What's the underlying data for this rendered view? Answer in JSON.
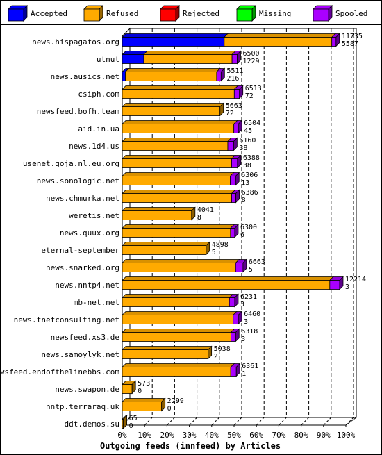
{
  "chart_data": {
    "type": "bar",
    "orientation": "horizontal",
    "stacked": true,
    "title": "",
    "xlabel": "Outgoing feeds (innfeed) by Articles",
    "ylabel": "",
    "xlim": [
      0,
      100
    ],
    "x_ticks": [
      0,
      10,
      20,
      30,
      40,
      50,
      60,
      70,
      80,
      90,
      100
    ],
    "x_tick_labels": [
      "0%",
      "10%",
      "20%",
      "30%",
      "40%",
      "50%",
      "60%",
      "70%",
      "80%",
      "90%",
      "100%"
    ],
    "grid": true,
    "legend_position": "top",
    "legend": [
      {
        "name": "Accepted",
        "color": "#0000ff"
      },
      {
        "name": "Refused",
        "color": "#ffaa00"
      },
      {
        "name": "Rejected",
        "color": "#ff0000"
      },
      {
        "name": "Missing",
        "color": "#00ff00"
      },
      {
        "name": "Spooled",
        "color": "#aa00ff"
      }
    ],
    "categories": [
      "news.hispagatos.org",
      "utnut",
      "news.ausics.net",
      "csiph.com",
      "newsfeed.bofh.team",
      "aid.in.ua",
      "news.1d4.us",
      "usenet.goja.nl.eu.org",
      "news.sonologic.net",
      "news.chmurka.net",
      "weretis.net",
      "news.quux.org",
      "eternal-september",
      "news.snarked.org",
      "news.nntp4.net",
      "mb-net.net",
      "news.tnetconsulting.net",
      "newsfeed.xs3.de",
      "news.samoylyk.net",
      "newsfeed.endofthelinebbs.com",
      "news.swapon.de",
      "nntp.terraraq.uk",
      "ddt.demos.su"
    ],
    "bar_labels": [
      [
        "11735",
        "5587"
      ],
      [
        "6500",
        "1229"
      ],
      [
        "5511",
        "216"
      ],
      [
        "6513",
        "72"
      ],
      [
        "5663",
        "72"
      ],
      [
        "6504",
        "45"
      ],
      [
        "6160",
        "38"
      ],
      [
        "6388",
        "38"
      ],
      [
        "6306",
        "13"
      ],
      [
        "6386",
        "8"
      ],
      [
        "4041",
        "8"
      ],
      [
        "6300",
        "6"
      ],
      [
        "4898",
        "5"
      ],
      [
        "6663",
        "5"
      ],
      [
        "12214",
        "3"
      ],
      [
        "6231",
        "3"
      ],
      [
        "6460",
        "3"
      ],
      [
        "6318",
        "3"
      ],
      [
        "5038",
        "2"
      ],
      [
        "6361",
        "1"
      ],
      [
        "573",
        "0"
      ],
      [
        "2299",
        "0"
      ],
      [
        "65",
        "0"
      ]
    ],
    "series": [
      {
        "name": "Accepted",
        "values": [
          45.6,
          9.6,
          1.4,
          0,
          0,
          0,
          0,
          0,
          0,
          0,
          0,
          0,
          0,
          0,
          0,
          0,
          0,
          0,
          0,
          0,
          0,
          0,
          0
        ]
      },
      {
        "name": "Refused",
        "values": [
          48.1,
          39.5,
          40.8,
          50.1,
          43.7,
          49.9,
          47.2,
          48.9,
          48.3,
          48.9,
          31.0,
          48.4,
          37.5,
          50.7,
          92.8,
          47.9,
          49.6,
          48.6,
          38.4,
          48.5,
          4.4,
          17.6,
          0.5
        ]
      },
      {
        "name": "Rejected",
        "values": [
          0,
          0,
          0,
          0,
          0,
          0,
          0,
          0,
          0,
          0,
          0,
          0,
          0,
          0,
          0,
          0,
          0,
          0,
          0,
          0,
          0,
          0,
          0
        ]
      },
      {
        "name": "Missing",
        "values": [
          0,
          0,
          0,
          0,
          0,
          0,
          0,
          0,
          0,
          0,
          0,
          0,
          0,
          0,
          0,
          0,
          0,
          0,
          0,
          0,
          0,
          0,
          0
        ]
      },
      {
        "name": "Spooled",
        "values": [
          1.9,
          2.3,
          2.0,
          2.3,
          0,
          2.0,
          2.6,
          2.6,
          2.4,
          1.9,
          0,
          1.9,
          0,
          3.3,
          4.4,
          2.4,
          2.3,
          2.1,
          0,
          2.5,
          0,
          0,
          0
        ]
      }
    ]
  }
}
